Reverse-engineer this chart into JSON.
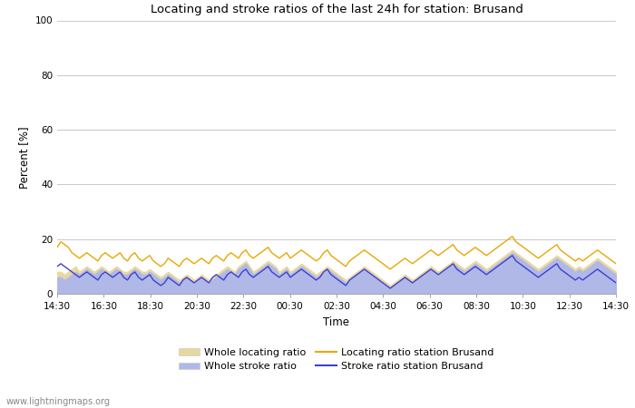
{
  "title": "Locating and stroke ratios of the last 24h for station: Brusand",
  "ylabel": "Percent [%]",
  "xlabel": "Time",
  "xlim_labels": [
    "14:30",
    "16:30",
    "18:30",
    "20:30",
    "22:30",
    "00:30",
    "02:30",
    "04:30",
    "06:30",
    "08:30",
    "10:30",
    "12:30",
    "14:30"
  ],
  "ylim": [
    0,
    100
  ],
  "yticks": [
    0,
    20,
    40,
    60,
    80,
    100
  ],
  "background_color": "#ffffff",
  "plot_bg_color": "#ffffff",
  "grid_color": "#cccccc",
  "watermark": "www.lightningmaps.org",
  "legend": [
    {
      "label": "Whole locating ratio",
      "type": "fill",
      "color": "#e8d8a0"
    },
    {
      "label": "Locating ratio station Brusand",
      "type": "line",
      "color": "#e8a800"
    },
    {
      "label": "Whole stroke ratio",
      "type": "fill",
      "color": "#b0b8e8"
    },
    {
      "label": "Stroke ratio station Brusand",
      "type": "line",
      "color": "#4040cc"
    }
  ],
  "loc_fill_color": "#e8d8a0",
  "loc_line_color": "#e8a800",
  "stroke_fill_color": "#b0b8e8",
  "stroke_line_color": "#4040cc",
  "locating_ratio_whole": [
    8,
    8,
    7,
    8,
    9,
    10,
    8,
    9,
    10,
    9,
    8,
    9,
    10,
    9,
    8,
    9,
    10,
    9,
    8,
    8,
    9,
    10,
    9,
    8,
    8,
    9,
    8,
    7,
    6,
    7,
    8,
    7,
    6,
    5,
    6,
    7,
    6,
    5,
    6,
    7,
    6,
    5,
    6,
    7,
    8,
    9,
    10,
    9,
    8,
    10,
    11,
    12,
    10,
    8,
    9,
    10,
    11,
    12,
    11,
    10,
    8,
    9,
    10,
    8,
    9,
    10,
    11,
    10,
    9,
    8,
    7,
    8,
    9,
    10,
    9,
    8,
    7,
    6,
    5,
    6,
    7,
    8,
    9,
    10,
    9,
    8,
    7,
    6,
    5,
    4,
    3,
    4,
    5,
    6,
    7,
    6,
    5,
    6,
    7,
    8,
    9,
    10,
    9,
    8,
    9,
    10,
    11,
    12,
    11,
    10,
    9,
    10,
    11,
    12,
    11,
    10,
    9,
    10,
    11,
    12,
    13,
    14,
    15,
    16,
    15,
    14,
    13,
    12,
    11,
    10,
    9,
    10,
    11,
    12,
    13,
    14,
    13,
    12,
    11,
    10,
    9,
    10,
    9,
    10,
    11,
    12,
    13,
    12,
    11,
    10,
    9,
    8
  ],
  "locating_ratio_station": [
    17,
    19,
    18,
    17,
    15,
    14,
    13,
    14,
    15,
    14,
    13,
    12,
    14,
    15,
    14,
    13,
    14,
    15,
    13,
    12,
    14,
    15,
    13,
    12,
    13,
    14,
    12,
    11,
    10,
    11,
    13,
    12,
    11,
    10,
    12,
    13,
    12,
    11,
    12,
    13,
    12,
    11,
    13,
    14,
    13,
    12,
    14,
    15,
    14,
    13,
    15,
    16,
    14,
    13,
    14,
    15,
    16,
    17,
    15,
    14,
    13,
    14,
    15,
    13,
    14,
    15,
    16,
    15,
    14,
    13,
    12,
    13,
    15,
    16,
    14,
    13,
    12,
    11,
    10,
    12,
    13,
    14,
    15,
    16,
    15,
    14,
    13,
    12,
    11,
    10,
    9,
    10,
    11,
    12,
    13,
    12,
    11,
    12,
    13,
    14,
    15,
    16,
    15,
    14,
    15,
    16,
    17,
    18,
    16,
    15,
    14,
    15,
    16,
    17,
    16,
    15,
    14,
    15,
    16,
    17,
    18,
    19,
    20,
    21,
    19,
    18,
    17,
    16,
    15,
    14,
    13,
    14,
    15,
    16,
    17,
    18,
    16,
    15,
    14,
    13,
    12,
    13,
    12,
    13,
    14,
    15,
    16,
    15,
    14,
    13,
    12,
    11
  ],
  "stroke_ratio_whole": [
    6,
    6,
    5,
    6,
    7,
    8,
    7,
    8,
    9,
    8,
    7,
    8,
    9,
    8,
    7,
    8,
    9,
    8,
    7,
    7,
    8,
    9,
    8,
    7,
    7,
    8,
    7,
    6,
    5,
    6,
    7,
    6,
    5,
    4,
    5,
    6,
    5,
    4,
    5,
    6,
    5,
    4,
    5,
    6,
    7,
    8,
    9,
    8,
    7,
    9,
    10,
    11,
    9,
    7,
    8,
    9,
    10,
    11,
    10,
    9,
    7,
    8,
    9,
    7,
    8,
    9,
    10,
    9,
    8,
    7,
    6,
    7,
    8,
    9,
    8,
    7,
    6,
    5,
    4,
    5,
    6,
    7,
    8,
    9,
    8,
    7,
    6,
    5,
    4,
    3,
    2,
    3,
    4,
    5,
    6,
    5,
    4,
    5,
    6,
    7,
    8,
    9,
    8,
    7,
    8,
    9,
    10,
    11,
    10,
    9,
    8,
    9,
    10,
    11,
    10,
    9,
    8,
    9,
    10,
    11,
    12,
    13,
    14,
    15,
    14,
    13,
    12,
    11,
    10,
    9,
    8,
    9,
    10,
    11,
    12,
    13,
    12,
    11,
    10,
    9,
    8,
    9,
    8,
    9,
    10,
    11,
    12,
    11,
    10,
    9,
    8,
    7
  ],
  "stroke_ratio_station": [
    10,
    11,
    10,
    9,
    8,
    7,
    6,
    7,
    8,
    7,
    6,
    5,
    7,
    8,
    7,
    6,
    7,
    8,
    6,
    5,
    7,
    8,
    6,
    5,
    6,
    7,
    5,
    4,
    3,
    4,
    6,
    5,
    4,
    3,
    5,
    6,
    5,
    4,
    5,
    6,
    5,
    4,
    6,
    7,
    6,
    5,
    7,
    8,
    7,
    6,
    8,
    9,
    7,
    6,
    7,
    8,
    9,
    10,
    8,
    7,
    6,
    7,
    8,
    6,
    7,
    8,
    9,
    8,
    7,
    6,
    5,
    6,
    8,
    9,
    7,
    6,
    5,
    4,
    3,
    5,
    6,
    7,
    8,
    9,
    8,
    7,
    6,
    5,
    4,
    3,
    2,
    3,
    4,
    5,
    6,
    5,
    4,
    5,
    6,
    7,
    8,
    9,
    8,
    7,
    8,
    9,
    10,
    11,
    9,
    8,
    7,
    8,
    9,
    10,
    9,
    8,
    7,
    8,
    9,
    10,
    11,
    12,
    13,
    14,
    12,
    11,
    10,
    9,
    8,
    7,
    6,
    7,
    8,
    9,
    10,
    11,
    9,
    8,
    7,
    6,
    5,
    6,
    5,
    6,
    7,
    8,
    9,
    8,
    7,
    6,
    5,
    4
  ]
}
